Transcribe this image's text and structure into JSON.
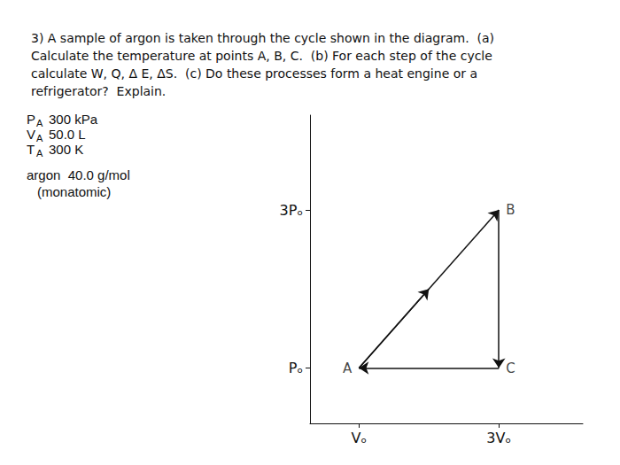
{
  "chart_data": {
    "type": "cycle",
    "title": [
      "3) A sample of argon is taken through the cycle shown in the diagram.  (a)",
      "Calculate the temperature at points A, B, C.  (b) For each step of the cycle",
      "calculate W, Q, Δ E, ΔS.  (c) Do these processes form a heat engine or a",
      "refrigerator?  Explain."
    ],
    "annotations": [
      {
        "text": "P",
        "subscript": "A",
        "after": "300 kPa"
      },
      {
        "text": "V",
        "subscript": "A",
        "after": "50.0 L"
      },
      {
        "text": "T",
        "subscript": "A",
        "after": "300 K"
      },
      {
        "text": "argon  40.0 g/mol"
      },
      {
        "text": "(monatomic)"
      }
    ],
    "x": [
      1,
      3,
      3
    ],
    "values": [
      1,
      3,
      1
    ],
    "point_labels": [
      "A",
      "B",
      "C"
    ],
    "xlim": [
      0.3,
      4.2
    ],
    "ylim": [
      0.3,
      4.2
    ],
    "xticks": [
      {
        "value": 1,
        "label": "Vₒ"
      },
      {
        "value": 3,
        "label": "3Vₒ"
      }
    ],
    "yticks": [
      {
        "value": 1,
        "label": "Pₒ"
      },
      {
        "value": 3,
        "label": "3Pₒ"
      }
    ],
    "grid": false,
    "color": "#111111"
  }
}
